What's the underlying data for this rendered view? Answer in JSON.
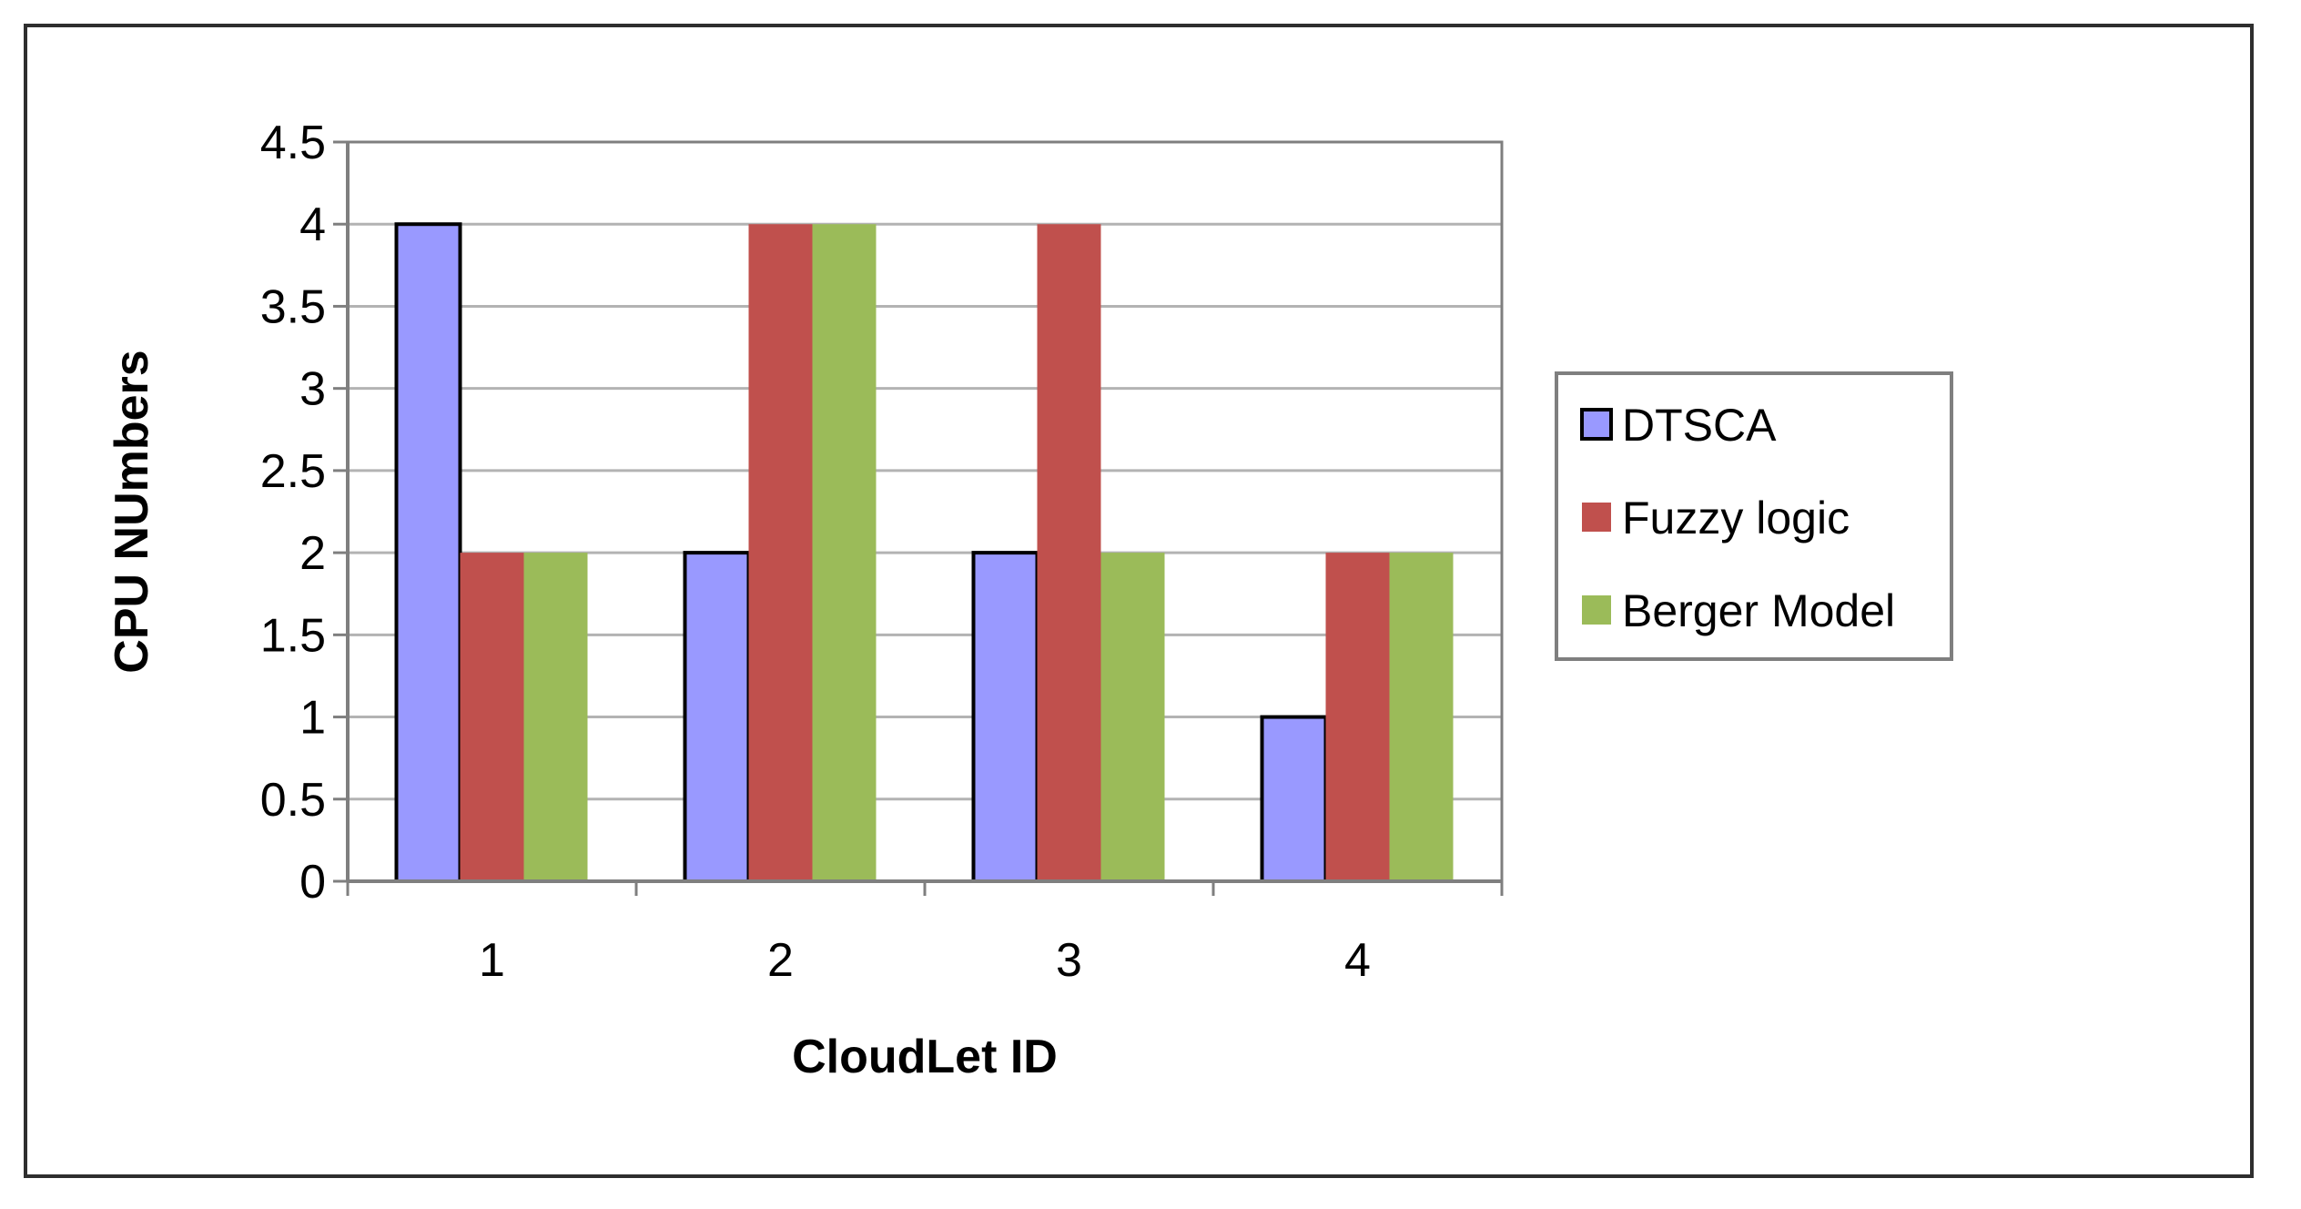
{
  "chart_data": {
    "type": "bar",
    "categories": [
      "1",
      "2",
      "3",
      "4"
    ],
    "series": [
      {
        "name": "DTSCA",
        "values": [
          4,
          2,
          2,
          1
        ],
        "color": "#9999ff",
        "outlined": true
      },
      {
        "name": "Fuzzy logic",
        "values": [
          2,
          4,
          4,
          2
        ],
        "color": "#c0504d",
        "outlined": false
      },
      {
        "name": "Berger Model",
        "values": [
          2,
          4,
          2,
          2
        ],
        "color": "#9bbb59",
        "outlined": false
      }
    ],
    "xlabel": "CloudLet ID",
    "ylabel": "CPU NUmbers",
    "ylim": [
      0,
      4.5
    ],
    "yticks": [
      "0",
      "0.5",
      "1",
      "1.5",
      "2",
      "2.5",
      "3",
      "3.5",
      "4",
      "4.5"
    ],
    "grid": true,
    "legend": "right"
  }
}
